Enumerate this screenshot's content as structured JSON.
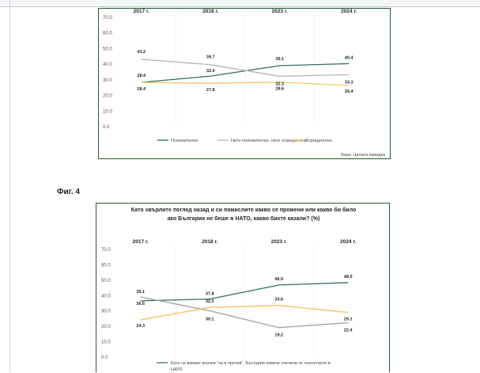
{
  "figure_label": "Фиг. 4",
  "chart_data": [
    {
      "type": "line",
      "title": "",
      "categories": [
        "2017 г.",
        "2018 г.",
        "2023 г.",
        "2024 г."
      ],
      "ylim": [
        0,
        70
      ],
      "yticks": [
        "0.0",
        "10.0",
        "20.0",
        "30.0",
        "40.0",
        "50.0",
        "60.0",
        "70.0"
      ],
      "grid": false,
      "legend": "bottom",
      "source": "База: Цялата извадка",
      "series": [
        {
          "name": "Положително",
          "color": "#336b6b",
          "values": [
            28.4,
            32.4,
            39.1,
            40.4
          ],
          "labels": [
            "28.4",
            "32.4",
            "39.1",
            "40.4"
          ]
        },
        {
          "name": "Нито положително, нито отрицателно",
          "color": "#b8b8b8",
          "values": [
            43.2,
            39.7,
            32.3,
            33.3
          ],
          "labels": [
            "43.2",
            "39.7",
            "32.3",
            "33.3"
          ]
        },
        {
          "name": "Отрицателно",
          "color": "#f2c75c",
          "values": [
            28.4,
            27.8,
            28.6,
            26.4
          ],
          "labels": [
            "28.4",
            "27.8",
            "28.6",
            "26.4"
          ]
        }
      ]
    },
    {
      "type": "line",
      "title": [
        "Като хвърлите поглед назад и си помислите какво се промени или какво би било",
        "ако България не беше в НАТО, какво бихте казали? (%)"
      ],
      "categories": [
        "2017 г.",
        "2018 г.",
        "2023 г.",
        "2024 г."
      ],
      "ylim": [
        0,
        70
      ],
      "yticks": [
        "0.0",
        "10.0",
        "20.0",
        "30.0",
        "40.0",
        "50.0",
        "60.0",
        "70.0"
      ],
      "grid": false,
      "legend": "bottom",
      "legend_text": [
        "Като се вземат всички \"за и против\", България повече спечели от членството в",
        "НАТО"
      ],
      "series": [
        {
          "color": "#336b6b",
          "values": [
            36.6,
            37.8,
            46.9,
            48.5
          ],
          "labels": [
            "36.6",
            "37.8",
            "46.9",
            "48.5"
          ]
        },
        {
          "color": "#a0a0a0",
          "values": [
            39.1,
            30.1,
            19.2,
            22.4
          ],
          "labels": [
            "39.1",
            "30.1",
            "19.2",
            "22.4"
          ]
        },
        {
          "color": "#f2c75c",
          "values": [
            24.3,
            32.3,
            33.6,
            29.1
          ],
          "labels": [
            "24.3",
            "32.3",
            "33.6",
            "29.1"
          ]
        }
      ]
    }
  ]
}
